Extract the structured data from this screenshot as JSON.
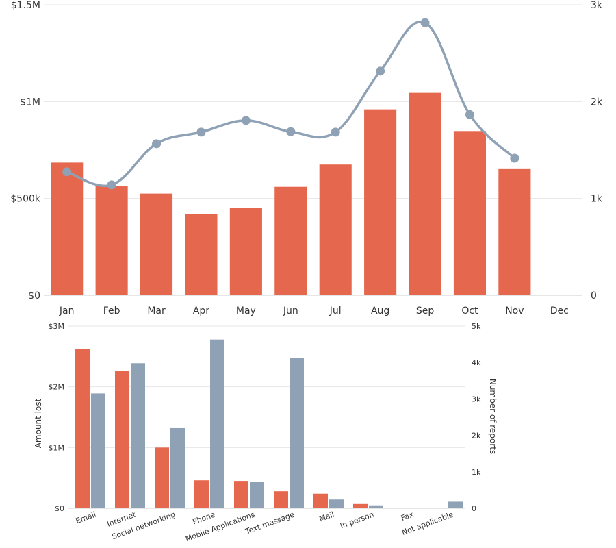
{
  "chart_data": [
    {
      "type": "bar+line",
      "categories": [
        "Jan",
        "Feb",
        "Mar",
        "Apr",
        "May",
        "Jun",
        "Jul",
        "Aug",
        "Sep",
        "Oct",
        "Nov",
        "Dec"
      ],
      "y_left": {
        "min": 0,
        "max": 1500000,
        "ticks": [
          {
            "value": 0,
            "label": "$0"
          },
          {
            "value": 500000,
            "label": "$500k"
          },
          {
            "value": 1000000,
            "label": "$1M"
          },
          {
            "value": 1500000,
            "label": "$1.5M"
          }
        ]
      },
      "y_right": {
        "min": 0,
        "max": 3000,
        "ticks": [
          {
            "value": 0,
            "label": "0"
          },
          {
            "value": 1000,
            "label": "1k"
          },
          {
            "value": 2000,
            "label": "2k"
          },
          {
            "value": 3000,
            "label": "3k"
          }
        ]
      },
      "bars": {
        "axis": "left",
        "color": "#e5684e",
        "values": [
          685000,
          565000,
          525000,
          418000,
          450000,
          560000,
          675000,
          960000,
          1045000,
          848000,
          655000,
          null
        ]
      },
      "line": {
        "axis": "right",
        "color": "#8fa1b4",
        "values": [
          1275,
          1140,
          1565,
          1685,
          1805,
          1690,
          1685,
          2315,
          2815,
          1865,
          1415,
          null
        ]
      },
      "grid": true
    },
    {
      "type": "bar",
      "categories": [
        "Email",
        "Internet",
        "Social networking",
        "Phone",
        "Mobile Applications",
        "Text message",
        "Mail",
        "In person",
        "Fax",
        "Not applicable"
      ],
      "y_left": {
        "title": "Amount lost",
        "min": 0,
        "max": 3000000,
        "ticks": [
          {
            "value": 0,
            "label": "$0"
          },
          {
            "value": 1000000,
            "label": "$1M"
          },
          {
            "value": 2000000,
            "label": "$2M"
          },
          {
            "value": 3000000,
            "label": "$3M"
          }
        ]
      },
      "y_right": {
        "title": "Number of reports",
        "min": 0,
        "max": 5000,
        "ticks": [
          {
            "value": 0,
            "label": "0"
          },
          {
            "value": 1000,
            "label": "1k"
          },
          {
            "value": 2000,
            "label": "2k"
          },
          {
            "value": 3000,
            "label": "3k"
          },
          {
            "value": 4000,
            "label": "4k"
          },
          {
            "value": 5000,
            "label": "5k"
          }
        ]
      },
      "series": [
        {
          "axis": "left",
          "color": "#e5684e",
          "values": [
            2620000,
            2260000,
            1000000,
            460000,
            450000,
            280000,
            240000,
            70000,
            0,
            0
          ]
        },
        {
          "axis": "right",
          "color": "#8fa1b4",
          "values": [
            3150,
            3980,
            2200,
            4630,
            720,
            4130,
            240,
            80,
            0,
            180
          ]
        }
      ],
      "grid": true
    }
  ]
}
